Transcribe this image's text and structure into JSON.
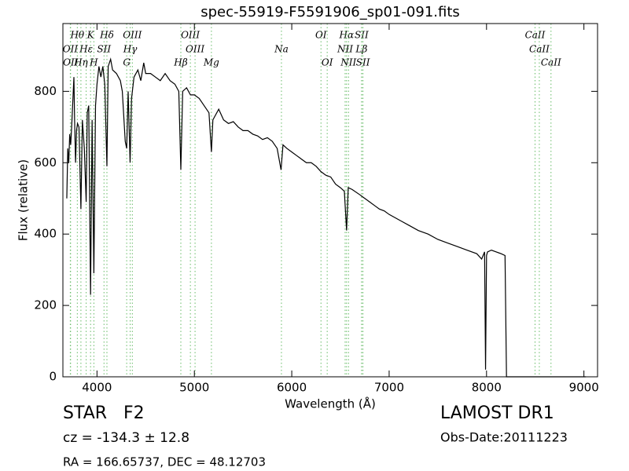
{
  "chart_data": {
    "type": "line",
    "title": "spec-55919-F5591906_sp01-091.fits",
    "x_label": "Wavelength (Å)",
    "y_label": "Flux (relative)",
    "xlim": [
      3650,
      9140
    ],
    "ylim": [
      0,
      990
    ],
    "xticks": [
      4000,
      5000,
      6000,
      7000,
      8000,
      9000
    ],
    "yticks": [
      0,
      200,
      400,
      600,
      800
    ],
    "color": "#000000",
    "line_color": "#66bb66",
    "x": [
      3690,
      3700,
      3710,
      3720,
      3730,
      3740,
      3763,
      3770,
      3780,
      3790,
      3800,
      3815,
      3835,
      3850,
      3870,
      3889,
      3900,
      3915,
      3934,
      3950,
      3968,
      3985,
      4000,
      4020,
      4040,
      4060,
      4080,
      4102,
      4115,
      4140,
      4160,
      4200,
      4240,
      4260,
      4290,
      4305,
      4320,
      4340,
      4355,
      4380,
      4420,
      4450,
      4480,
      4500,
      4550,
      4600,
      4650,
      4700,
      4750,
      4800,
      4840,
      4861,
      4880,
      4920,
      4960,
      5000,
      5050,
      5100,
      5150,
      5175,
      5190,
      5250,
      5300,
      5350,
      5400,
      5450,
      5500,
      5550,
      5600,
      5650,
      5700,
      5750,
      5800,
      5850,
      5890,
      5910,
      5950,
      6000,
      6050,
      6100,
      6150,
      6200,
      6250,
      6300,
      6350,
      6400,
      6450,
      6500,
      6540,
      6563,
      6580,
      6620,
      6700,
      6750,
      6800,
      6850,
      6900,
      6950,
      7000,
      7100,
      7200,
      7300,
      7400,
      7500,
      7600,
      7700,
      7800,
      7900,
      7950,
      7980,
      7990,
      8000,
      8010,
      8050,
      8100,
      8150,
      8190,
      8205,
      8300,
      9020
    ],
    "values": [
      500,
      640,
      600,
      680,
      650,
      700,
      840,
      720,
      600,
      690,
      710,
      700,
      470,
      720,
      640,
      490,
      740,
      760,
      230,
      720,
      290,
      760,
      820,
      870,
      840,
      870,
      820,
      590,
      870,
      890,
      860,
      850,
      830,
      800,
      660,
      640,
      800,
      600,
      780,
      840,
      860,
      830,
      880,
      850,
      850,
      840,
      830,
      850,
      830,
      820,
      800,
      580,
      800,
      810,
      790,
      790,
      780,
      760,
      740,
      630,
      720,
      750,
      720,
      710,
      715,
      700,
      690,
      690,
      680,
      675,
      665,
      670,
      660,
      640,
      580,
      650,
      640,
      630,
      620,
      610,
      600,
      600,
      590,
      575,
      565,
      560,
      540,
      530,
      520,
      410,
      530,
      525,
      510,
      500,
      490,
      480,
      470,
      465,
      455,
      440,
      425,
      410,
      400,
      385,
      375,
      365,
      355,
      345,
      330,
      350,
      20,
      340,
      350,
      355,
      350,
      345,
      340,
      0,
      0,
      0
    ],
    "marker_lines": [
      [
        {
          "wavelength": 3798,
          "label": "Hθ"
        },
        {
          "wavelength": 3934,
          "label": "K"
        },
        {
          "wavelength": 4102,
          "label": "Hδ"
        },
        {
          "wavelength": 4363,
          "label": "OIII"
        },
        {
          "wavelength": 4959,
          "label": "OIII"
        },
        {
          "wavelength": 6300,
          "label": "OI"
        },
        {
          "wavelength": 6563,
          "label": "Hα"
        },
        {
          "wavelength": 6717,
          "label": "SII"
        },
        {
          "wavelength": 8498,
          "label": "CaII"
        }
      ],
      [
        {
          "wavelength": 3726,
          "label": "OII"
        },
        {
          "wavelength": 3889,
          "label": "Hε"
        },
        {
          "wavelength": 4072,
          "label": "SII"
        },
        {
          "wavelength": 4341,
          "label": "Hγ"
        },
        {
          "wavelength": 5007,
          "label": "OIII"
        },
        {
          "wavelength": 5894,
          "label": "Na"
        },
        {
          "wavelength": 6548,
          "label": "NII"
        },
        {
          "wavelength": 6717,
          "label": "Lβ"
        },
        {
          "wavelength": 8542,
          "label": "CaII"
        }
      ],
      [
        {
          "wavelength": 3729,
          "label": "OII"
        },
        {
          "wavelength": 3835,
          "label": "Hη"
        },
        {
          "wavelength": 3968,
          "label": "H"
        },
        {
          "wavelength": 4305,
          "label": "G"
        },
        {
          "wavelength": 4861,
          "label": "Hβ"
        },
        {
          "wavelength": 5175,
          "label": "Mg"
        },
        {
          "wavelength": 6364,
          "label": "OI"
        },
        {
          "wavelength": 6583,
          "label": "NII"
        },
        {
          "wavelength": 6731,
          "label": "SII"
        },
        {
          "wavelength": 8662,
          "label": "CaII"
        }
      ]
    ],
    "annotations": [
      "STAR   F2",
      "LAMOST DR1",
      "cz = -134.3 ± 12.8",
      "Obs-Date:20111223",
      "RA = 166.65737, DEC = 48.12703"
    ]
  }
}
